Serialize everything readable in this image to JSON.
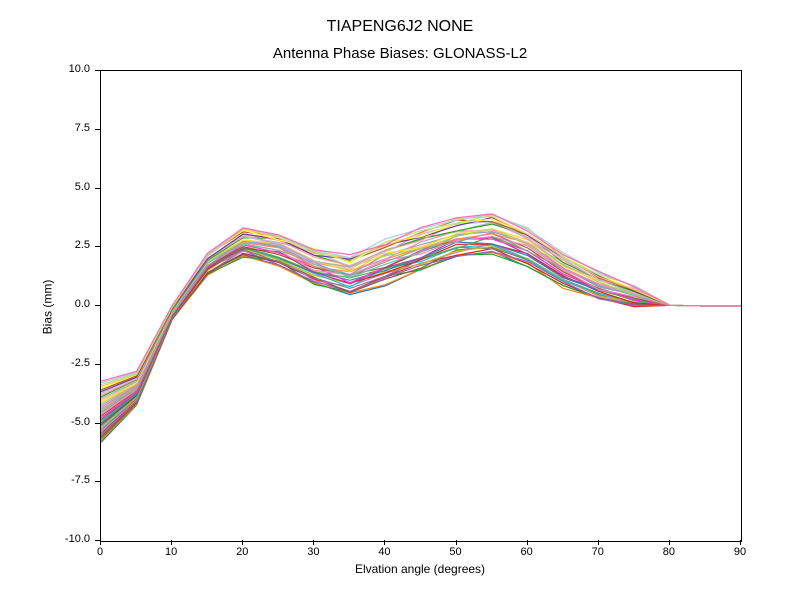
{
  "suptitle": "TIAPENG6J2       NONE",
  "chart": {
    "title": "Antenna Phase Biases: GLONASS-L2",
    "xlabel": "Elvation angle (degrees)",
    "ylabel": "Bias (mm)",
    "xlim": [
      0,
      90
    ],
    "ylim": [
      -10.0,
      10.0
    ],
    "xticks": [
      0,
      10,
      20,
      30,
      40,
      50,
      60,
      70,
      80,
      90
    ],
    "yticks": [
      -10.0,
      -7.5,
      -5.0,
      -2.5,
      0.0,
      2.5,
      5.0,
      7.5,
      10.0
    ],
    "ytick_labels": [
      "-10.0",
      "-7.5",
      "-5.0",
      "-2.5",
      "0.0",
      "2.5",
      "5.0",
      "7.5",
      "10.0"
    ],
    "background_color": "#ffffff",
    "border_color": "#000000",
    "label_fontsize": 12,
    "tick_fontsize": 11,
    "title_fontsize": 15,
    "suptitle_fontsize": 16,
    "line_width": 1.2,
    "palette": [
      "#1f77b4",
      "#ff7f0e",
      "#2ca02c",
      "#d62728",
      "#9467bd",
      "#8c564b",
      "#e377c2",
      "#7f7f7f",
      "#bcbd22",
      "#17becf",
      "#e41a1c",
      "#377eb8",
      "#4daf4a",
      "#984ea3",
      "#ff33cc",
      "#a65628",
      "#f781bf",
      "#999999",
      "#66c2a5",
      "#fc8d62",
      "#8da0cb",
      "#e78ac3",
      "#a6d854",
      "#ffd92f",
      "#e5c494",
      "#b3b3b3",
      "#33a02c",
      "#fb9a99",
      "#cab2d6",
      "#6a3d9a",
      "#b15928",
      "#ffff33",
      "#fdbf6f",
      "#b2df8a",
      "#a6cee3",
      "#ff69b4"
    ],
    "base_series_x": [
      0,
      5,
      10,
      15,
      20,
      25,
      30,
      35,
      40,
      45,
      50,
      55,
      60,
      65,
      70,
      75,
      80,
      85,
      90
    ],
    "base_series_y": [
      -4.4,
      -2.5,
      -0.3,
      1.8,
      2.7,
      2.4,
      1.7,
      1.3,
      1.9,
      2.4,
      2.9,
      3.1,
      2.5,
      1.5,
      0.8,
      0.4,
      0.1,
      0.0,
      0.0
    ],
    "n_series": 36,
    "envelope": {
      "start_spread": [
        -5.8,
        -3.2
      ],
      "mid_low_offset": -0.9,
      "mid_high_offset": 0.9,
      "end_offset": 0.0
    }
  }
}
